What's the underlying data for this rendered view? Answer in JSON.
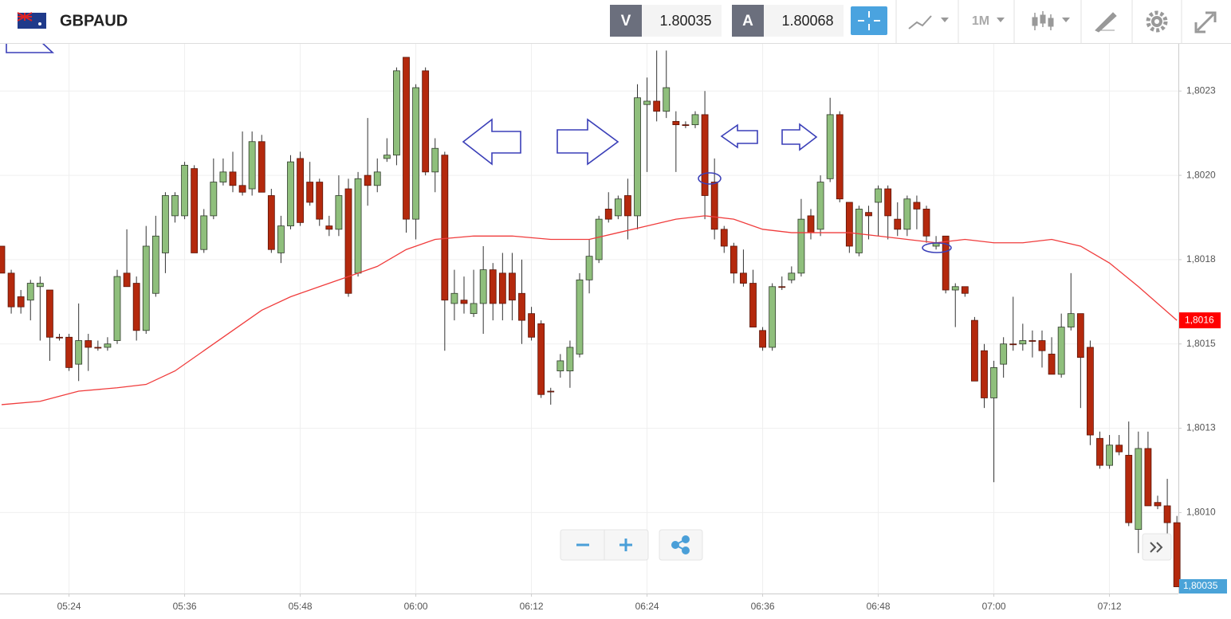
{
  "header": {
    "symbol": "GBPAUD",
    "bid_label": "V",
    "bid": "1.80035",
    "ask_label": "A",
    "ask": "1.80068",
    "timeframe": "1M"
  },
  "chart_data": {
    "type": "candlestick",
    "x": [
      "05:17",
      "05:18",
      "05:19",
      "05:20",
      "05:21",
      "05:22",
      "05:23",
      "05:24",
      "05:25",
      "05:26",
      "05:27",
      "05:28",
      "05:29",
      "05:30",
      "05:31",
      "05:32",
      "05:33",
      "05:34",
      "05:35",
      "05:36",
      "05:37",
      "05:38",
      "05:39",
      "05:40",
      "05:41",
      "05:42",
      "05:43",
      "05:44",
      "05:45",
      "05:46",
      "05:47",
      "05:48",
      "05:49",
      "05:50",
      "05:51",
      "05:52",
      "05:53",
      "05:54",
      "05:55",
      "05:56",
      "05:57",
      "05:58",
      "05:59",
      "06:00",
      "06:01",
      "06:02",
      "06:03",
      "06:04",
      "06:05",
      "06:06",
      "06:07",
      "06:08",
      "06:09",
      "06:10",
      "06:11",
      "06:12",
      "06:13",
      "06:14",
      "06:15",
      "06:16",
      "06:17",
      "06:18",
      "06:19",
      "06:20",
      "06:21",
      "06:22",
      "06:23",
      "06:24",
      "06:25",
      "06:26",
      "06:27",
      "06:28",
      "06:29",
      "06:30",
      "06:31",
      "06:32",
      "06:33",
      "06:34",
      "06:35",
      "06:36",
      "06:37",
      "06:38",
      "06:39",
      "06:40",
      "06:41",
      "06:42",
      "06:43",
      "06:44",
      "06:45",
      "06:46",
      "06:47",
      "06:48",
      "06:49",
      "06:50",
      "06:51",
      "06:52",
      "06:53",
      "06:54",
      "06:55",
      "06:56",
      "06:57",
      "06:58",
      "06:59",
      "07:00",
      "07:01",
      "07:02",
      "07:03",
      "07:04",
      "07:05",
      "07:06",
      "07:07",
      "07:08",
      "07:09",
      "07:10",
      "07:11",
      "07:12",
      "07:13",
      "07:14",
      "07:15",
      "07:16",
      "07:17",
      "07:18",
      "07:19"
    ],
    "open": [
      1.80179,
      1.80171,
      1.80164,
      1.80163,
      1.80167,
      1.80166,
      1.80152,
      1.80152,
      1.80144,
      1.80151,
      1.80149,
      1.80149,
      1.80151,
      1.80171,
      1.80168,
      1.80154,
      1.80165,
      1.80177,
      1.80188,
      1.80188,
      1.80202,
      1.80178,
      1.80188,
      1.80198,
      1.80201,
      1.80197,
      1.80196,
      1.8021,
      1.80194,
      1.80177,
      1.80185,
      1.80205,
      1.80198,
      1.80198,
      1.80185,
      1.80184,
      1.80196,
      1.80171,
      1.802,
      1.80197,
      1.80205,
      1.80206,
      1.80235,
      1.80187,
      1.80231,
      1.80201,
      1.80206,
      1.80162,
      1.80163,
      1.80159,
      1.80162,
      1.80172,
      1.80171,
      1.80171,
      1.80165,
      1.80159,
      1.80156,
      1.80136,
      1.80142,
      1.80142,
      1.80147,
      1.80169,
      1.80175,
      1.8019,
      1.80188,
      1.80194,
      1.80188,
      1.80221,
      1.80222,
      1.80219,
      1.80216,
      1.80215,
      1.80215,
      1.80218,
      1.80198,
      1.80184,
      1.80179,
      1.80171,
      1.80168,
      1.80154,
      1.80149,
      1.80167,
      1.80169,
      1.80171,
      1.80188,
      1.80184,
      1.80199,
      1.80218,
      1.80192,
      1.80177,
      1.80189,
      1.80192,
      1.80196,
      1.80187,
      1.80184,
      1.80192,
      1.8019,
      1.80179,
      1.80182,
      1.80166,
      1.80167,
      1.80157,
      1.80148,
      1.80134,
      1.80144,
      1.8015,
      1.8015,
      1.80151,
      1.80151,
      1.80147,
      1.80141,
      1.80155,
      1.80159,
      1.80149,
      1.80122,
      1.80114,
      1.8012,
      1.80117,
      1.80095,
      1.80119,
      1.80103,
      1.80102,
      1.80097
    ],
    "high": [
      1.80179,
      1.80172,
      1.80166,
      1.80169,
      1.8017,
      1.80166,
      1.80153,
      1.80153,
      1.80162,
      1.80153,
      1.80151,
      1.80152,
      1.80172,
      1.80184,
      1.8017,
      1.80185,
      1.80188,
      1.80195,
      1.80195,
      1.80204,
      1.80203,
      1.8019,
      1.80205,
      1.80205,
      1.80207,
      1.80213,
      1.80213,
      1.80212,
      1.80196,
      1.80188,
      1.80206,
      1.80207,
      1.80204,
      1.80199,
      1.80188,
      1.802,
      1.80199,
      1.80201,
      1.80217,
      1.80205,
      1.80211,
      1.80232,
      1.80235,
      1.80227,
      1.80232,
      1.80211,
      1.80207,
      1.80172,
      1.8017,
      1.80172,
      1.80179,
      1.80174,
      1.80177,
      1.80177,
      1.80175,
      1.80161,
      1.80157,
      1.80137,
      1.80147,
      1.80151,
      1.80171,
      1.80181,
      1.80188,
      1.80195,
      1.80194,
      1.80199,
      1.80227,
      1.80229,
      1.80237,
      1.80237,
      1.80219,
      1.80216,
      1.80219,
      1.80225,
      1.80205,
      1.80185,
      1.8018,
      1.80178,
      1.80172,
      1.80155,
      1.80168,
      1.8017,
      1.80173,
      1.80193,
      1.8019,
      1.802,
      1.80223,
      1.80219,
      1.80192,
      1.80191,
      1.80191,
      1.80197,
      1.80197,
      1.80192,
      1.80194,
      1.80194,
      1.80191,
      1.80182,
      1.80182,
      1.80168,
      1.80167,
      1.80158,
      1.8015,
      1.80145,
      1.80152,
      1.80164,
      1.80156,
      1.80154,
      1.80154,
      1.80152,
      1.80159,
      1.80171,
      1.80159,
      1.80151,
      1.80124,
      1.80123,
      1.80123,
      1.80127,
      1.80124,
      1.80124,
      1.80105,
      1.8011,
      1.80099
    ],
    "low": [
      1.80171,
      1.80159,
      1.80159,
      1.80157,
      1.80151,
      1.80145,
      1.80151,
      1.80142,
      1.80139,
      1.80142,
      1.80148,
      1.80148,
      1.8015,
      1.80167,
      1.80151,
      1.80153,
      1.80164,
      1.80171,
      1.80186,
      1.80187,
      1.80177,
      1.80177,
      1.80187,
      1.80197,
      1.80195,
      1.80194,
      1.80194,
      1.80195,
      1.80177,
      1.80174,
      1.80184,
      1.80185,
      1.80191,
      1.80185,
      1.80182,
      1.80182,
      1.80164,
      1.8017,
      1.80191,
      1.80195,
      1.80204,
      1.80203,
      1.80183,
      1.80181,
      1.802,
      1.80195,
      1.80148,
      1.80157,
      1.80159,
      1.80158,
      1.80153,
      1.80157,
      1.80157,
      1.80157,
      1.8015,
      1.80151,
      1.80134,
      1.80132,
      1.8014,
      1.80137,
      1.80146,
      1.80165,
      1.80174,
      1.80186,
      1.80187,
      1.80181,
      1.80184,
      1.80201,
      1.80216,
      1.80217,
      1.80201,
      1.80214,
      1.80214,
      1.80187,
      1.80181,
      1.80177,
      1.80168,
      1.80167,
      1.80155,
      1.80148,
      1.80148,
      1.80166,
      1.80168,
      1.8017,
      1.80181,
      1.80182,
      1.80198,
      1.80192,
      1.80177,
      1.80176,
      1.80181,
      1.80182,
      1.80181,
      1.80182,
      1.80182,
      1.80184,
      1.8018,
      1.80178,
      1.80165,
      1.80155,
      1.80164,
      1.80139,
      1.80131,
      1.80109,
      1.8014,
      1.80148,
      1.80148,
      1.80146,
      1.80143,
      1.80141,
      1.8014,
      1.80154,
      1.80131,
      1.8012,
      1.80113,
      1.80113,
      1.80117,
      1.80096,
      1.80088,
      1.80102,
      1.80101,
      1.80092,
      1.80078
    ],
    "close": [
      1.80171,
      1.80161,
      1.80161,
      1.80168,
      1.80168,
      1.80152,
      1.80152,
      1.80143,
      1.80151,
      1.80149,
      1.80149,
      1.8015,
      1.8017,
      1.80167,
      1.80154,
      1.80179,
      1.80182,
      1.80194,
      1.80194,
      1.80203,
      1.80177,
      1.80188,
      1.80198,
      1.80201,
      1.80197,
      1.80195,
      1.8021,
      1.80195,
      1.80178,
      1.80185,
      1.80204,
      1.80186,
      1.80192,
      1.80187,
      1.80184,
      1.80194,
      1.80165,
      1.80199,
      1.80197,
      1.80201,
      1.80206,
      1.80231,
      1.80187,
      1.80226,
      1.80201,
      1.80208,
      1.80163,
      1.80165,
      1.80162,
      1.80162,
      1.80172,
      1.80162,
      1.80162,
      1.80163,
      1.80157,
      1.80152,
      1.80135,
      1.80136,
      1.80145,
      1.80149,
      1.80169,
      1.80176,
      1.80187,
      1.80187,
      1.80193,
      1.80188,
      1.80223,
      1.80222,
      1.80219,
      1.80226,
      1.80215,
      1.80215,
      1.80218,
      1.80194,
      1.80184,
      1.80179,
      1.80171,
      1.80168,
      1.80155,
      1.80149,
      1.80167,
      1.80167,
      1.80171,
      1.80187,
      1.80183,
      1.80198,
      1.80218,
      1.80193,
      1.80179,
      1.8019,
      1.80188,
      1.80196,
      1.80188,
      1.80184,
      1.80193,
      1.8019,
      1.80182,
      1.8018,
      1.80166,
      1.80167,
      1.80165,
      1.80139,
      1.80134,
      1.80143,
      1.8015,
      1.8015,
      1.80151,
      1.80151,
      1.80148,
      1.80141,
      1.80155,
      1.80159,
      1.80146,
      1.80123,
      1.80114,
      1.8012,
      1.80118,
      1.80097,
      1.80119,
      1.80102,
      1.80102,
      1.80097,
      1.80078
    ],
    "up_color": "#8fbf7c",
    "down_color": "#b4290d",
    "overlay": {
      "color": "#f03c3c",
      "x": [
        "05:17",
        "05:21",
        "05:25",
        "05:29",
        "05:32",
        "05:35",
        "05:38",
        "05:41",
        "05:44",
        "05:47",
        "05:50",
        "05:53",
        "05:56",
        "05:59",
        "06:02",
        "06:06",
        "06:10",
        "06:14",
        "06:18",
        "06:21",
        "06:24",
        "06:27",
        "06:30",
        "06:33",
        "06:36",
        "06:39",
        "06:42",
        "06:45",
        "06:48",
        "06:51",
        "06:54",
        "06:57",
        "07:00",
        "07:03",
        "07:06",
        "07:09",
        "07:12",
        "07:15",
        "07:19"
      ],
      "values": [
        1.80132,
        1.80133,
        1.80136,
        1.80137,
        1.80138,
        1.80142,
        1.80148,
        1.80154,
        1.8016,
        1.80164,
        1.80167,
        1.8017,
        1.80173,
        1.80178,
        1.80181,
        1.80182,
        1.80182,
        1.80181,
        1.80181,
        1.80183,
        1.80185,
        1.80187,
        1.80188,
        1.80187,
        1.80184,
        1.80183,
        1.80183,
        1.80183,
        1.80182,
        1.80181,
        1.8018,
        1.80181,
        1.8018,
        1.8018,
        1.80181,
        1.80179,
        1.80174,
        1.80167,
        1.80157
      ]
    },
    "ma_tag": "1,8016",
    "price_tag": "1,80035",
    "ylim": [
      1.80076,
      1.80239
    ],
    "yticks": [
      {
        "value": 1.801,
        "label": "1,8010"
      },
      {
        "value": 1.80125,
        "label": "1,8013"
      },
      {
        "value": 1.8015,
        "label": "1,8015"
      },
      {
        "value": 1.80175,
        "label": "1,8018"
      },
      {
        "value": 1.802,
        "label": "1,8020"
      },
      {
        "value": 1.80225,
        "label": "1,8023"
      }
    ],
    "xticks": [
      "05:24",
      "05:36",
      "05:48",
      "06:00",
      "06:12",
      "06:24",
      "06:36",
      "06:48",
      "07:00",
      "07:12"
    ],
    "grid": true
  }
}
